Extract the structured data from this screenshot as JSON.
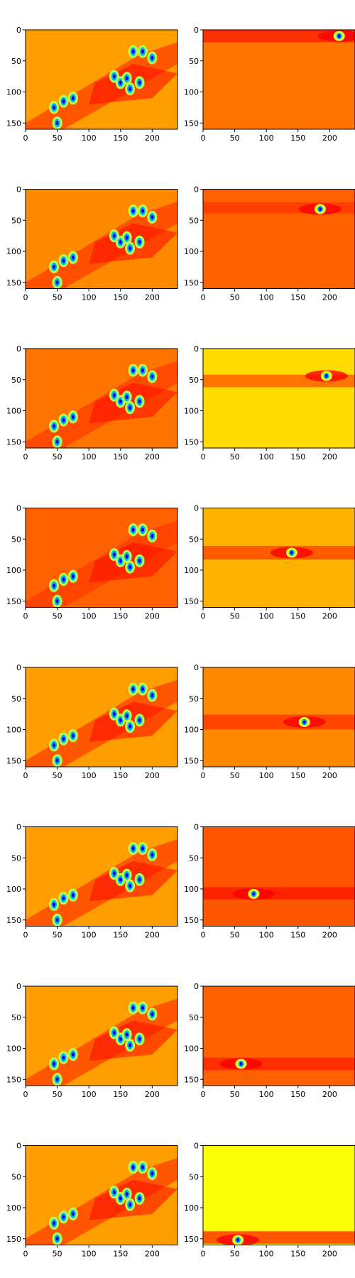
{
  "chart_data": {
    "type": "heatmap",
    "layout": {
      "rows": 8,
      "cols": 2
    },
    "colormap": "jet",
    "x_ticks": [
      0,
      50,
      100,
      150,
      200
    ],
    "y_ticks": [
      0,
      50,
      100,
      150
    ],
    "x_tick_labels": [
      "0",
      "50",
      "100",
      "150",
      "200"
    ],
    "y_tick_labels": [
      "0",
      "50",
      "100",
      "150"
    ],
    "image_size": {
      "width": 240,
      "height": 160
    },
    "xlim": [
      0,
      240
    ],
    "ylim": [
      160,
      0
    ],
    "panels": [
      {
        "row": 0,
        "col": 0,
        "kind": "full_map",
        "background_level": 0.72
      },
      {
        "row": 0,
        "col": 1,
        "kind": "band",
        "background_level": 0.76,
        "band_center_y": 10,
        "band_halfwidth": 10,
        "band_level": 0.84,
        "hotspot": {
          "x": 215,
          "y": 10
        }
      },
      {
        "row": 1,
        "col": 0,
        "kind": "full_map",
        "background_level": 0.74
      },
      {
        "row": 1,
        "col": 1,
        "kind": "band",
        "background_level": 0.78,
        "band_center_y": 30,
        "band_halfwidth": 9,
        "band_level": 0.82,
        "hotspot": {
          "x": 185,
          "y": 32
        }
      },
      {
        "row": 2,
        "col": 0,
        "kind": "full_map",
        "background_level": 0.76
      },
      {
        "row": 2,
        "col": 1,
        "kind": "band",
        "background_level": 0.66,
        "band_center_y": 52,
        "band_halfwidth": 10,
        "band_level": 0.78,
        "hotspot": {
          "x": 195,
          "y": 44
        }
      },
      {
        "row": 3,
        "col": 0,
        "kind": "full_map",
        "background_level": 0.78
      },
      {
        "row": 3,
        "col": 1,
        "kind": "band",
        "background_level": 0.7,
        "band_center_y": 72,
        "band_halfwidth": 11,
        "band_level": 0.8,
        "hotspot": {
          "x": 140,
          "y": 72
        }
      },
      {
        "row": 4,
        "col": 0,
        "kind": "full_map",
        "background_level": 0.72
      },
      {
        "row": 4,
        "col": 1,
        "kind": "band",
        "background_level": 0.74,
        "band_center_y": 88,
        "band_halfwidth": 12,
        "band_level": 0.82,
        "hotspot": {
          "x": 160,
          "y": 88
        }
      },
      {
        "row": 5,
        "col": 0,
        "kind": "full_map",
        "background_level": 0.72
      },
      {
        "row": 5,
        "col": 1,
        "kind": "band",
        "background_level": 0.79,
        "band_center_y": 107,
        "band_halfwidth": 10,
        "band_level": 0.85,
        "hotspot": {
          "x": 80,
          "y": 108
        }
      },
      {
        "row": 6,
        "col": 0,
        "kind": "full_map",
        "background_level": 0.72
      },
      {
        "row": 6,
        "col": 1,
        "kind": "band",
        "background_level": 0.78,
        "band_center_y": 125,
        "band_halfwidth": 10,
        "band_level": 0.84,
        "hotspot": {
          "x": 60,
          "y": 125
        }
      },
      {
        "row": 7,
        "col": 0,
        "kind": "full_map",
        "background_level": 0.72
      },
      {
        "row": 7,
        "col": 1,
        "kind": "band",
        "background_level": 0.62,
        "band_center_y": 148,
        "band_halfwidth": 10,
        "band_level": 0.82,
        "hotspot": {
          "x": 55,
          "y": 152
        }
      }
    ],
    "full_map_hotspots": [
      {
        "x": 45,
        "y": 125
      },
      {
        "x": 60,
        "y": 115
      },
      {
        "x": 75,
        "y": 110
      },
      {
        "x": 50,
        "y": 150
      },
      {
        "x": 140,
        "y": 75
      },
      {
        "x": 150,
        "y": 85
      },
      {
        "x": 165,
        "y": 95
      },
      {
        "x": 160,
        "y": 78
      },
      {
        "x": 180,
        "y": 85
      },
      {
        "x": 185,
        "y": 35
      },
      {
        "x": 170,
        "y": 35
      },
      {
        "x": 200,
        "y": 45
      }
    ]
  }
}
